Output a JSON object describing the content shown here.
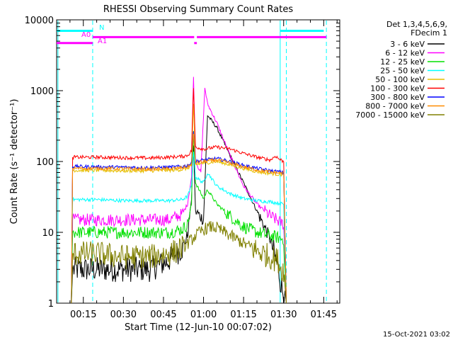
{
  "chart_data": {
    "type": "line",
    "title": "RHESSI Observing Summary Count Rates",
    "xlabel": "Start Time (12-Jun-10 00:07:02)",
    "ylabel": "Count Rate (s⁻¹ detector⁻¹)",
    "y_scale": "log",
    "ylim": [
      1,
      10000
    ],
    "xlim_minutes": [
      5,
      111
    ],
    "x_ticks": [
      "00:15",
      "00:30",
      "00:45",
      "01:00",
      "01:15",
      "01:30",
      "01:45"
    ],
    "x_tick_minutes": [
      15,
      30,
      45,
      60,
      75,
      90,
      105
    ],
    "y_ticks": [
      "1",
      "10",
      "100",
      "1000",
      "10000"
    ],
    "y_tick_values": [
      1,
      10,
      100,
      1000,
      10000
    ],
    "legend_header": [
      "Det 1,3,4,5,6,9,",
      "FDecim 1"
    ],
    "legend_position": "right",
    "footer_date": "15-Oct-2021 03:02",
    "series": [
      {
        "name": "3 - 6 keV",
        "color": "#000000",
        "x": [
          10.5,
          11,
          20,
          30,
          40,
          47,
          52,
          54,
          55.5,
          56.2,
          57,
          60,
          61.5,
          65,
          70,
          75,
          80,
          85,
          88,
          89.5,
          90.5,
          91
        ],
        "y": [
          1,
          3,
          3,
          3,
          3,
          4,
          6,
          9,
          30,
          200,
          20,
          15,
          450,
          300,
          120,
          50,
          20,
          8,
          3,
          1.5,
          1.5,
          1
        ]
      },
      {
        "name": "6 - 12 keV",
        "color": "#ff00ff",
        "x": [
          10.5,
          11,
          20,
          30,
          40,
          47,
          52,
          54,
          55.5,
          56.2,
          57,
          59,
          60.5,
          61.5,
          65,
          70,
          75,
          80,
          85,
          90,
          91
        ],
        "y": [
          1,
          15,
          15,
          15,
          15,
          15,
          18,
          25,
          60,
          2000,
          100,
          70,
          1100,
          650,
          350,
          120,
          45,
          25,
          17,
          13,
          1
        ]
      },
      {
        "name": "12 - 25 keV",
        "color": "#00e000",
        "x": [
          10.5,
          11,
          20,
          30,
          40,
          47,
          52,
          54,
          55.5,
          56.2,
          57,
          60,
          61.5,
          65,
          70,
          75,
          80,
          85,
          90,
          91
        ],
        "y": [
          1,
          10,
          10,
          10,
          10,
          10,
          11,
          13,
          25,
          300,
          50,
          30,
          40,
          25,
          17,
          12,
          10,
          9,
          8,
          1
        ]
      },
      {
        "name": "25 - 50 keV",
        "color": "#00ffff",
        "x": [
          10.5,
          11,
          20,
          30,
          40,
          47,
          52,
          54,
          55.5,
          56.2,
          57,
          60,
          61.5,
          65,
          70,
          75,
          80,
          85,
          90,
          91
        ],
        "y": [
          1,
          29,
          29,
          28,
          28,
          28,
          29,
          32,
          45,
          150,
          60,
          50,
          70,
          45,
          35,
          30,
          28,
          27,
          25,
          1
        ]
      },
      {
        "name": "50 - 100 keV",
        "color": "#e6c000",
        "x": [
          10.5,
          11,
          20,
          30,
          40,
          47,
          52,
          54,
          55.5,
          56.2,
          57,
          60,
          65,
          70,
          75,
          80,
          85,
          90,
          91
        ],
        "y": [
          1,
          75,
          75,
          74,
          74,
          75,
          77,
          80,
          88,
          700,
          90,
          95,
          100,
          90,
          80,
          72,
          68,
          65,
          1
        ]
      },
      {
        "name": "100 - 300 keV",
        "color": "#ff0000",
        "x": [
          10.5,
          11,
          20,
          30,
          40,
          47,
          52,
          54,
          55.5,
          56.2,
          57,
          60,
          65,
          70,
          75,
          80,
          85,
          87,
          88,
          90,
          91
        ],
        "y": [
          1,
          115,
          115,
          113,
          112,
          115,
          118,
          122,
          140,
          1200,
          160,
          150,
          160,
          150,
          130,
          115,
          105,
          120,
          110,
          100,
          1
        ]
      },
      {
        "name": "300 - 800 keV",
        "color": "#0000ff",
        "x": [
          10.5,
          11,
          20,
          30,
          40,
          47,
          52,
          54,
          55.5,
          56.2,
          57,
          60,
          65,
          70,
          75,
          80,
          85,
          90,
          91
        ],
        "y": [
          1,
          85,
          84,
          83,
          82,
          83,
          85,
          88,
          95,
          300,
          100,
          105,
          110,
          100,
          88,
          80,
          74,
          70,
          1
        ]
      },
      {
        "name": "800 - 7000 keV",
        "color": "#ff8c00",
        "x": [
          10.5,
          11,
          20,
          30,
          40,
          47,
          52,
          54,
          55.5,
          56.2,
          57,
          60,
          65,
          70,
          75,
          80,
          85,
          90,
          91
        ],
        "y": [
          1,
          80,
          80,
          79,
          78,
          79,
          81,
          84,
          90,
          250,
          95,
          100,
          105,
          95,
          84,
          76,
          71,
          68,
          1
        ]
      },
      {
        "name": "7000 - 15000 keV",
        "color": "#808000",
        "x": [
          10.5,
          11,
          20,
          30,
          40,
          47,
          50,
          53,
          55,
          57,
          60,
          63,
          65,
          70,
          75,
          80,
          85,
          88,
          89,
          90,
          91
        ],
        "y": [
          1,
          5,
          5,
          4.5,
          4.5,
          5,
          5.5,
          6.5,
          7.5,
          9,
          11,
          12,
          11.5,
          9,
          7,
          5.5,
          4.5,
          4,
          3,
          3,
          1
        ]
      }
    ],
    "flags": [
      {
        "label": "N",
        "color": "#00ffff",
        "level": 7000,
        "segments": [
          [
            5,
            18.5
          ],
          [
            88.7,
            105
          ]
        ]
      },
      {
        "label": "A0",
        "color": "#ff00ff",
        "level": 5700,
        "segments": [
          [
            18.5,
            56.5
          ],
          [
            57.5,
            106
          ]
        ]
      },
      {
        "label": "A1",
        "color": "#ff00ff",
        "level": 4700,
        "segments": [
          [
            5,
            18.5
          ],
          [
            56.5,
            57.5
          ]
        ]
      }
    ],
    "vertical_markers": [
      {
        "x": 5.5,
        "color": "#00ffff",
        "style": "solid"
      },
      {
        "x": 18.5,
        "color": "#00ffff",
        "style": "dashed"
      },
      {
        "x": 88.7,
        "color": "#00ffff",
        "style": "solid"
      },
      {
        "x": 91,
        "color": "#00ffff",
        "style": "dashed"
      },
      {
        "x": 106,
        "color": "#00ffff",
        "style": "dashed"
      }
    ]
  }
}
